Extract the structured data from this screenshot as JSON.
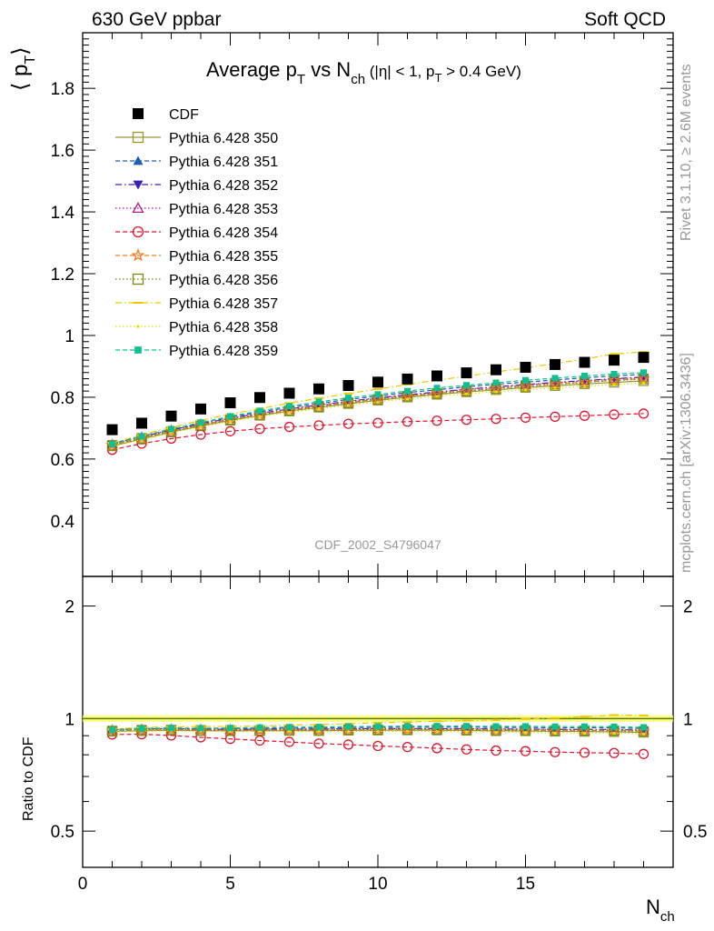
{
  "header": {
    "left": "630 GeV ppbar",
    "right": "Soft QCD"
  },
  "plot_title": {
    "main": "Average p",
    "sub_T": "T",
    "vs": " vs N",
    "sub_ch": "ch",
    "cuts_a": " (|η| < 1, p",
    "cuts_sub": "T",
    "cuts_b": " > 0.4 GeV)"
  },
  "side_labels": {
    "rivet": "Rivet 3.1.10, ≥ 2.6M events",
    "mcplots": "mcplots.cern.ch [arXiv:1306.3436]"
  },
  "watermark": "CDF_2002_S4796047",
  "ylabel_main": {
    "a": "⟨ p",
    "sub": "T",
    "b": "⟩"
  },
  "ylabel_ratio": "Ratio to CDF",
  "xlabel": {
    "a": "N",
    "sub": "ch"
  },
  "colors": {
    "cdf": "#000000",
    "p350": "#999933",
    "p351": "#1c5fb4",
    "p352": "#3b1fb0",
    "p353": "#b0208f",
    "p354": "#e3142d",
    "p355": "#f47a20",
    "p356": "#7a8a10",
    "p357": "#f0c800",
    "p358": "#e0e000",
    "p359": "#10c090",
    "band": "#ffff66",
    "ratio_line": "#5a7a00"
  },
  "chart_data": {
    "type": "scatter",
    "panels": [
      "main",
      "ratio"
    ],
    "x": [
      1,
      2,
      3,
      4,
      5,
      6,
      7,
      8,
      9,
      10,
      11,
      12,
      13,
      14,
      15,
      16,
      17,
      18,
      19
    ],
    "xlim": [
      0,
      20
    ],
    "ylim_main": [
      0.22,
      1.98
    ],
    "ylim_ratio": [
      0.4,
      2.4
    ],
    "yscale_ratio": "log",
    "xticks": [
      0,
      5,
      10,
      15
    ],
    "yticks_main": [
      0.4,
      0.6,
      0.8,
      1,
      1.2,
      1.4,
      1.6,
      1.8
    ],
    "yticks_ratio": [
      0.5,
      1,
      2
    ],
    "series": [
      {
        "name": "CDF",
        "marker": "square-filled",
        "line": "none",
        "key": "cdf",
        "values": [
          0.695,
          0.716,
          0.739,
          0.762,
          0.782,
          0.799,
          0.813,
          0.827,
          0.838,
          0.849,
          0.859,
          0.869,
          0.879,
          0.889,
          0.897,
          0.906,
          0.913,
          0.92,
          0.929
        ]
      },
      {
        "name": "Pythia 6.428 350",
        "marker": "square-open",
        "line": "solid",
        "key": "p350",
        "values": [
          0.642,
          0.664,
          0.687,
          0.707,
          0.725,
          0.741,
          0.755,
          0.767,
          0.779,
          0.79,
          0.8,
          0.809,
          0.817,
          0.824,
          0.831,
          0.837,
          0.843,
          0.848,
          0.853
        ]
      },
      {
        "name": "Pythia 6.428 351",
        "marker": "triangle-up-filled",
        "line": "dashed",
        "key": "p351",
        "values": [
          0.65,
          0.674,
          0.697,
          0.717,
          0.736,
          0.752,
          0.767,
          0.78,
          0.793,
          0.804,
          0.815,
          0.824,
          0.834,
          0.842,
          0.849,
          0.856,
          0.863,
          0.869,
          0.874
        ]
      },
      {
        "name": "Pythia 6.428 352",
        "marker": "triangle-down-filled",
        "line": "dashdot",
        "key": "p352",
        "values": [
          0.649,
          0.672,
          0.694,
          0.714,
          0.732,
          0.748,
          0.762,
          0.775,
          0.787,
          0.798,
          0.808,
          0.817,
          0.826,
          0.834,
          0.841,
          0.848,
          0.854,
          0.86,
          0.865
        ]
      },
      {
        "name": "Pythia 6.428 353",
        "marker": "triangle-up-open",
        "line": "dotted",
        "key": "p353",
        "values": [
          0.648,
          0.671,
          0.693,
          0.713,
          0.731,
          0.747,
          0.761,
          0.774,
          0.786,
          0.797,
          0.807,
          0.816,
          0.825,
          0.833,
          0.84,
          0.847,
          0.853,
          0.859,
          0.864
        ]
      },
      {
        "name": "Pythia 6.428 354",
        "marker": "circle-open",
        "line": "dashed",
        "key": "p354",
        "values": [
          0.63,
          0.65,
          0.666,
          0.679,
          0.69,
          0.698,
          0.704,
          0.709,
          0.714,
          0.717,
          0.721,
          0.724,
          0.727,
          0.73,
          0.734,
          0.737,
          0.74,
          0.744,
          0.747
        ]
      },
      {
        "name": "Pythia 6.428 355",
        "marker": "star-open",
        "line": "dashed",
        "key": "p355",
        "values": [
          0.645,
          0.668,
          0.69,
          0.71,
          0.728,
          0.744,
          0.758,
          0.771,
          0.783,
          0.794,
          0.804,
          0.813,
          0.821,
          0.829,
          0.836,
          0.843,
          0.849,
          0.855,
          0.86
        ]
      },
      {
        "name": "Pythia 6.428 356",
        "marker": "square-open",
        "line": "dotted",
        "key": "p356",
        "values": [
          0.644,
          0.667,
          0.689,
          0.709,
          0.727,
          0.743,
          0.757,
          0.77,
          0.782,
          0.793,
          0.803,
          0.812,
          0.82,
          0.828,
          0.835,
          0.842,
          0.848,
          0.854,
          0.859
        ]
      },
      {
        "name": "Pythia 6.428 357",
        "marker": "dash",
        "line": "dashdot",
        "key": "p357",
        "values": [
          0.652,
          0.678,
          0.702,
          0.725,
          0.745,
          0.763,
          0.781,
          0.797,
          0.812,
          0.827,
          0.841,
          0.855,
          0.868,
          0.882,
          0.895,
          0.909,
          0.924,
          0.94,
          0.947
        ]
      },
      {
        "name": "Pythia 6.428 358",
        "marker": "dot",
        "line": "dotted",
        "key": "p358",
        "values": [
          0.641,
          0.663,
          0.685,
          0.704,
          0.722,
          0.738,
          0.751,
          0.763,
          0.774,
          0.785,
          0.795,
          0.803,
          0.811,
          0.818,
          0.824,
          0.83,
          0.836,
          0.841,
          0.846
        ]
      },
      {
        "name": "Pythia 6.428 359",
        "marker": "square-filled-small",
        "line": "dashed",
        "key": "p359",
        "values": [
          0.648,
          0.673,
          0.697,
          0.718,
          0.738,
          0.756,
          0.771,
          0.785,
          0.798,
          0.809,
          0.82,
          0.83,
          0.839,
          0.847,
          0.855,
          0.862,
          0.869,
          0.875,
          0.88
        ]
      }
    ]
  }
}
